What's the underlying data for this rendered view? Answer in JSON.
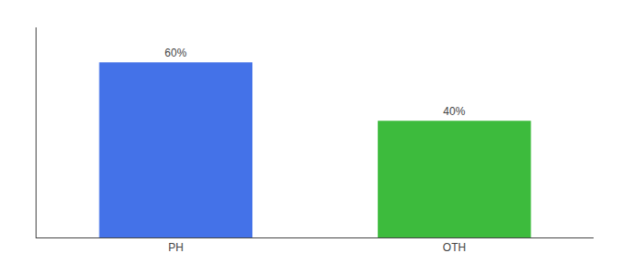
{
  "chart_data": {
    "type": "bar",
    "categories": [
      "PH",
      "OTH"
    ],
    "values": [
      60,
      40
    ],
    "value_labels": [
      "60%",
      "40%"
    ],
    "data_labels": true,
    "colors": [
      "#4472e8",
      "#3dbb3d"
    ],
    "ylim": [
      0,
      72
    ],
    "grid": false,
    "tick_labels": "x"
  }
}
